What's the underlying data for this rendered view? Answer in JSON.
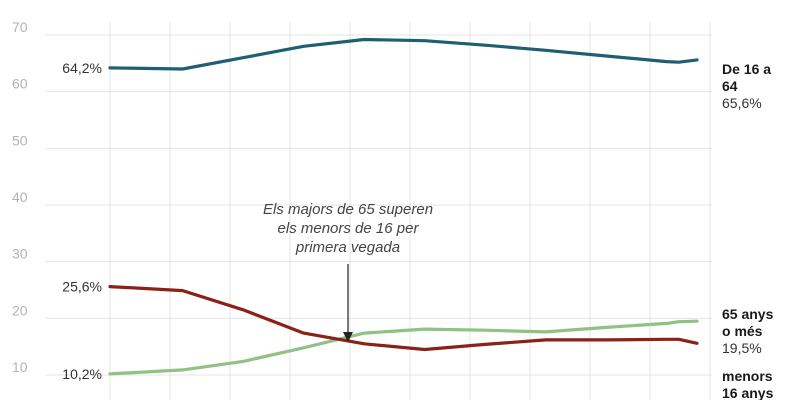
{
  "chart_data": {
    "type": "line",
    "title": "",
    "xlabel": "",
    "ylabel": "",
    "ylim": [
      10,
      70
    ],
    "y_ticks": [
      10,
      20,
      30,
      40,
      50,
      60,
      70
    ],
    "grid": {
      "horizontal": true,
      "vertical": true
    },
    "x": [
      0,
      1.2,
      2.2,
      3.2,
      4.2,
      5.2,
      6.2,
      7.2,
      8.2,
      9.2,
      9.4,
      9.7
    ],
    "series": [
      {
        "name": "De 16 a 64",
        "name_lines": [
          "De 16 a",
          "64"
        ],
        "color": "#1f5f73",
        "start_label": "64,2%",
        "end_label": "65,6%",
        "values": [
          64.2,
          64.0,
          66.0,
          68.0,
          69.2,
          69.0,
          68.2,
          67.3,
          66.3,
          65.3,
          65.2,
          65.6
        ]
      },
      {
        "name": "65 anys o més",
        "name_lines": [
          "65 anys",
          "o més"
        ],
        "color": "#8fc284",
        "start_label": "10,2%",
        "end_label": "19,5%",
        "values": [
          10.2,
          10.9,
          12.4,
          14.8,
          17.4,
          18.1,
          17.9,
          17.6,
          18.4,
          19.1,
          19.4,
          19.5
        ]
      },
      {
        "name": "menors 16 anys",
        "name_lines": [
          "menors",
          "16 anys"
        ],
        "color": "#8b2118",
        "start_label": "25,6%",
        "end_label": "",
        "values": [
          25.6,
          24.9,
          21.5,
          17.4,
          15.5,
          14.5,
          15.4,
          16.2,
          16.2,
          16.3,
          16.3,
          15.6
        ]
      }
    ],
    "annotation": {
      "lines": [
        "Els majors de 65 superen",
        "els menors de 16 per",
        "primera vegada"
      ]
    }
  }
}
